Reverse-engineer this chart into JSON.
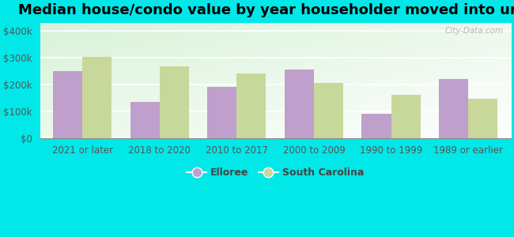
{
  "title": "Median house/condo value by year householder moved into unit",
  "categories": [
    "2021 or later",
    "2018 to 2020",
    "2010 to 2017",
    "2000 to 2009",
    "1990 to 1999",
    "1989 or earlier"
  ],
  "elloree_values": [
    250000,
    135000,
    192000,
    258000,
    93000,
    220000
  ],
  "sc_values": [
    305000,
    268000,
    242000,
    208000,
    163000,
    148000
  ],
  "elloree_color": "#bf9fcc",
  "sc_color": "#c8d89a",
  "background_color": "#00e8e8",
  "ylabel_ticks": [
    0,
    100000,
    200000,
    300000,
    400000
  ],
  "ylabel_labels": [
    "$0",
    "$100k",
    "$200k",
    "$300k",
    "$400k"
  ],
  "ylim": [
    0,
    430000
  ],
  "legend_elloree": "Elloree",
  "legend_sc": "South Carolina",
  "watermark": "City-Data.com",
  "bar_width": 0.38,
  "title_fontsize": 13,
  "axis_fontsize": 8.5,
  "legend_fontsize": 9
}
